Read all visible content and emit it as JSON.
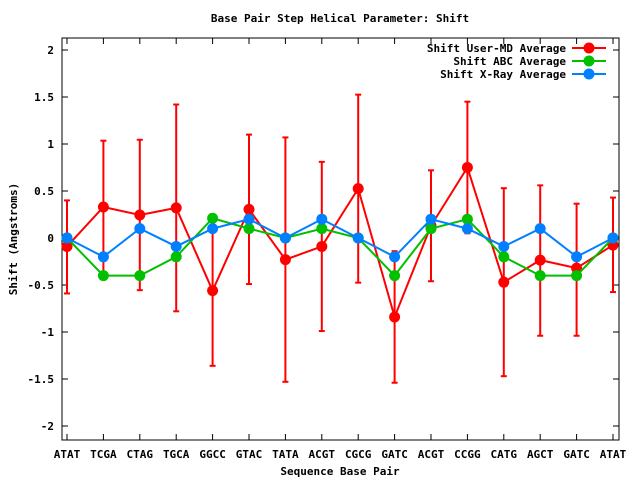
{
  "chart_data": {
    "type": "line",
    "title": "Base Pair Step Helical Parameter: Shift",
    "xlabel": "Sequence Base Pair",
    "ylabel": "Shift (Angstroms)",
    "ylim": [
      -2.15,
      2.2
    ],
    "yticks": [
      2,
      1.5,
      1,
      0.5,
      0,
      -0.5,
      -1,
      -1.5,
      -2
    ],
    "ytick_labels": [
      "2",
      "1.5",
      "1",
      "0.5",
      "0",
      "-0.5",
      "-1",
      "-1.5",
      "-2"
    ],
    "categories": [
      "ATAT",
      "TCGA",
      "CTAG",
      "TGCA",
      "GGCC",
      "GTAC",
      "TATA",
      "ACGT",
      "CGCG",
      "GATC",
      "ACGT",
      "CCGG",
      "CATG",
      "AGCT",
      "GATC",
      "ATAT"
    ],
    "legend_position": "top-right",
    "grid": false,
    "series": [
      {
        "name": "Shift User-MD Average",
        "color": "#ff0000",
        "values": [
          -0.09,
          0.33,
          0.245,
          0.32,
          -0.56,
          0.305,
          -0.23,
          -0.09,
          0.525,
          -0.84,
          0.13,
          0.75,
          -0.47,
          -0.235,
          -0.32,
          -0.075
        ],
        "err_high": [
          0.4,
          1.035,
          1.045,
          1.42,
          0.24,
          1.1,
          1.07,
          0.81,
          1.525,
          -0.14,
          0.72,
          1.45,
          0.53,
          0.56,
          0.365,
          0.43
        ],
        "err_low": [
          -0.59,
          -0.37,
          -0.555,
          -0.78,
          -1.36,
          -0.49,
          -1.53,
          -0.99,
          -0.475,
          -1.54,
          -0.46,
          0.05,
          -1.47,
          -1.04,
          -1.04,
          -0.575
        ]
      },
      {
        "name": "Shift ABC Average",
        "color": "#00c000",
        "values": [
          0,
          -0.4,
          -0.4,
          -0.2,
          0.21,
          0.1,
          0,
          0.1,
          0,
          -0.4,
          0.1,
          0.2,
          -0.2,
          -0.4,
          -0.4,
          0
        ]
      },
      {
        "name": "Shift X-Ray Average",
        "color": "#0080ff",
        "values": [
          0,
          -0.2,
          0.1,
          -0.09,
          0.1,
          0.2,
          0,
          0.2,
          0,
          -0.2,
          0.2,
          0.1,
          -0.09,
          0.1,
          -0.2,
          0
        ]
      }
    ]
  }
}
